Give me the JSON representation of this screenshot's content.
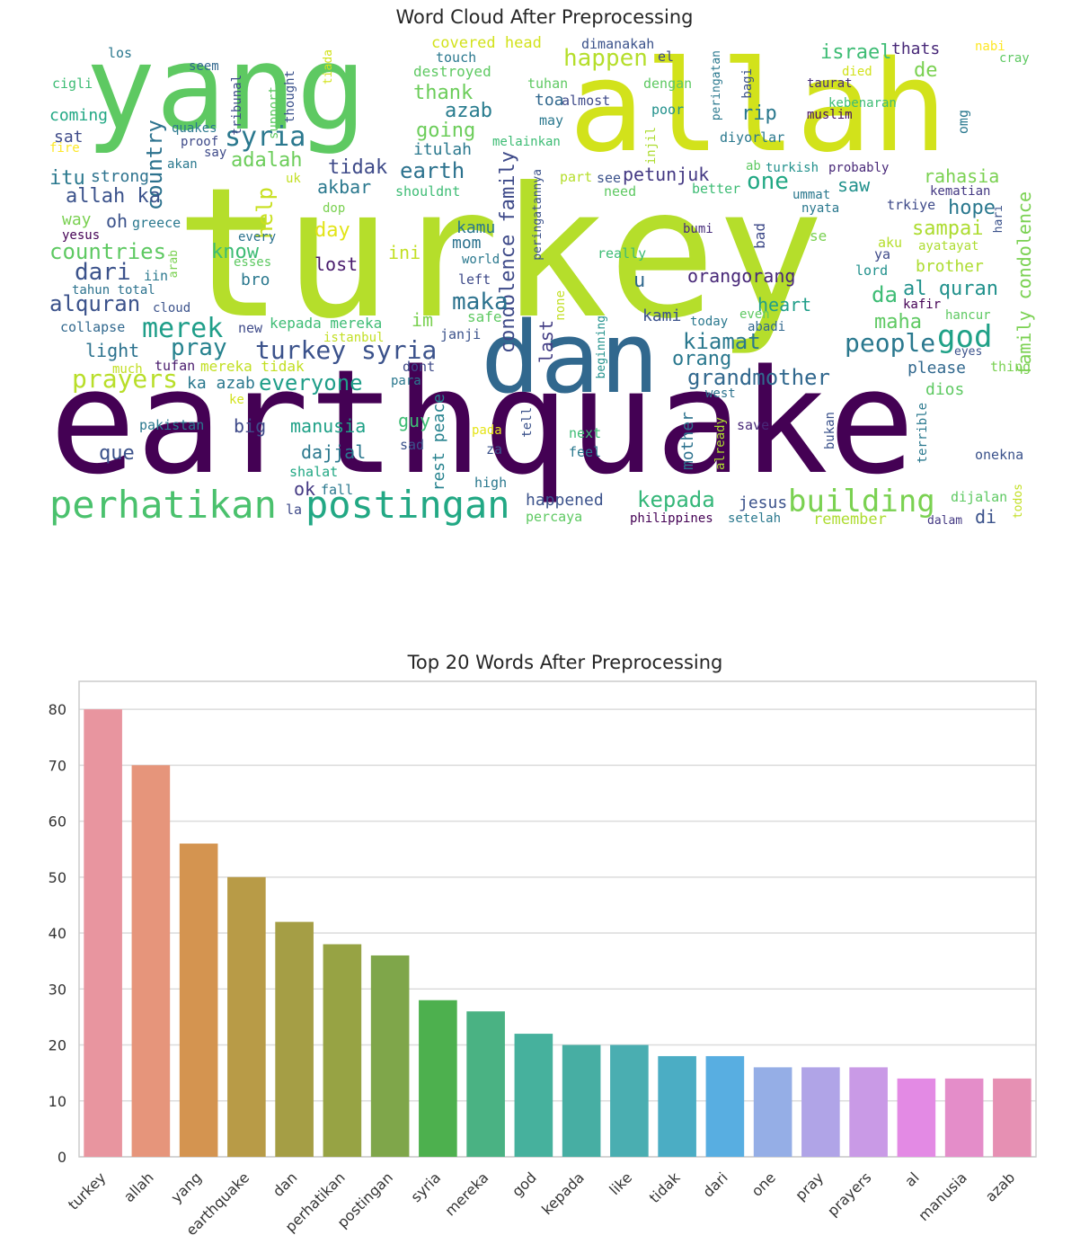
{
  "wordcloud": {
    "title": "Word Cloud After Preprocessing",
    "words": [
      {
        "text": "earthquake",
        "color": "#440154"
      },
      {
        "text": "turkey",
        "color": "#b5de2b"
      },
      {
        "text": "allah",
        "color": "#d2e21b"
      },
      {
        "text": "yang",
        "color": "#5ec962"
      },
      {
        "text": "dan",
        "color": "#31688e"
      },
      {
        "text": "perhatikan",
        "color": "#4ac16d"
      },
      {
        "text": "postingan",
        "color": "#22a884"
      },
      {
        "text": "syria",
        "color": "#2a788e"
      },
      {
        "text": "building",
        "color": "#7ad151"
      },
      {
        "text": "god",
        "color": "#1fa187"
      },
      {
        "text": "turkey syria",
        "color": "#3b528b"
      },
      {
        "text": "merek",
        "color": "#1f9e89"
      },
      {
        "text": "kepada",
        "color": "#35b779"
      },
      {
        "text": "people",
        "color": "#2a788e"
      },
      {
        "text": "kiamat",
        "color": "#2a788e"
      },
      {
        "text": "grandmother",
        "color": "#31688e"
      },
      {
        "text": "prayers",
        "color": "#b8de29"
      },
      {
        "text": "everyone",
        "color": "#1f9e89"
      },
      {
        "text": "condolence family",
        "color": "#3e4a89"
      },
      {
        "text": "family condolence",
        "color": "#7ad151"
      },
      {
        "text": "country",
        "color": "#2c728e"
      },
      {
        "text": "earth",
        "color": "#2c728e"
      },
      {
        "text": "happen",
        "color": "#b5de2b"
      },
      {
        "text": "israel",
        "color": "#3dbc74"
      },
      {
        "text": "countries",
        "color": "#5ec962"
      },
      {
        "text": "dari",
        "color": "#3b528b"
      },
      {
        "text": "alquran",
        "color": "#3b528b"
      },
      {
        "text": "maka",
        "color": "#2c728e"
      },
      {
        "text": "pray",
        "color": "#26828e"
      },
      {
        "text": "thank",
        "color": "#6ccd5a"
      },
      {
        "text": "going",
        "color": "#6ccd5a"
      },
      {
        "text": "adalah",
        "color": "#6ccd5a"
      },
      {
        "text": "allah ka",
        "color": "#3b528b"
      },
      {
        "text": "akbar",
        "color": "#2a788e"
      },
      {
        "text": "tidak",
        "color": "#3e4a89"
      },
      {
        "text": "azab",
        "color": "#287c8e"
      },
      {
        "text": "help",
        "color": "#c8e020"
      },
      {
        "text": "one",
        "color": "#22a884"
      },
      {
        "text": "al quran",
        "color": "#21918c"
      },
      {
        "text": "rahasia",
        "color": "#7ad151"
      },
      {
        "text": "hope",
        "color": "#2a788e"
      },
      {
        "text": "sampai",
        "color": "#addc30"
      },
      {
        "text": "da",
        "color": "#3dbc74"
      },
      {
        "text": "maha",
        "color": "#5ec962"
      },
      {
        "text": "day",
        "color": "#e2e418"
      },
      {
        "text": "know",
        "color": "#3dbc74"
      },
      {
        "text": "lost",
        "color": "#481a6c"
      },
      {
        "text": "ini",
        "color": "#c2df23"
      },
      {
        "text": "kamu",
        "color": "#2a788e"
      },
      {
        "text": "mom",
        "color": "#2c728e"
      },
      {
        "text": "rip",
        "color": "#2a788e"
      },
      {
        "text": "petunjuk",
        "color": "#443983"
      },
      {
        "text": "orangorang",
        "color": "#482878"
      },
      {
        "text": "heart",
        "color": "#1f9e89"
      },
      {
        "text": "u",
        "color": "#31688e"
      },
      {
        "text": "kami",
        "color": "#3b528b"
      },
      {
        "text": "orang",
        "color": "#2a788e"
      },
      {
        "text": "saw",
        "color": "#21918c"
      },
      {
        "text": "de",
        "color": "#7ad151"
      },
      {
        "text": "thats",
        "color": "#482878"
      },
      {
        "text": "im",
        "color": "#7ad151"
      },
      {
        "text": "bro",
        "color": "#2a788e"
      },
      {
        "text": "way",
        "color": "#7ad151"
      },
      {
        "text": "oh",
        "color": "#3b528b"
      },
      {
        "text": "itu",
        "color": "#2a788e"
      },
      {
        "text": "strong",
        "color": "#2c728e"
      },
      {
        "text": "coming",
        "color": "#22a884"
      },
      {
        "text": "sat",
        "color": "#3e4a89"
      },
      {
        "text": "light",
        "color": "#2c728e"
      },
      {
        "text": "big",
        "color": "#3e4a89"
      },
      {
        "text": "que",
        "color": "#3b528b"
      },
      {
        "text": "manusia",
        "color": "#1fa187"
      },
      {
        "text": "dajjal",
        "color": "#2a788e"
      },
      {
        "text": "ok",
        "color": "#443983"
      },
      {
        "text": "guy",
        "color": "#3dbc74"
      },
      {
        "text": "happened",
        "color": "#3b528b"
      },
      {
        "text": "jesus",
        "color": "#3b528b"
      },
      {
        "text": "di",
        "color": "#3b528b"
      },
      {
        "text": "mother",
        "color": "#2c728e"
      },
      {
        "text": "last",
        "color": "#433e85"
      },
      {
        "text": "rest peace",
        "color": "#26828e"
      },
      {
        "text": "brother",
        "color": "#addc30"
      },
      {
        "text": "please",
        "color": "#31688e"
      },
      {
        "text": "dios",
        "color": "#5ec962"
      },
      {
        "text": "kepada mereka",
        "color": "#3dbc74"
      },
      {
        "text": "mereka tidak",
        "color": "#c2df23"
      },
      {
        "text": "ka azab",
        "color": "#2a788e"
      },
      {
        "text": "covered head",
        "color": "#d2e21b"
      },
      {
        "text": "destroyed",
        "color": "#5ec962"
      },
      {
        "text": "touch",
        "color": "#2a788e"
      },
      {
        "text": "dimanakah",
        "color": "#3b528b"
      },
      {
        "text": "nabi",
        "color": "#fde725"
      },
      {
        "text": "cray",
        "color": "#5ec962"
      },
      {
        "text": "los",
        "color": "#2a788e"
      },
      {
        "text": "seem",
        "color": "#31688e"
      },
      {
        "text": "cigli",
        "color": "#3dbc74"
      },
      {
        "text": "taurat",
        "color": "#472d7b"
      },
      {
        "text": "muslim",
        "color": "#471063"
      },
      {
        "text": "kebenaran",
        "color": "#3dbc74"
      },
      {
        "text": "poor",
        "color": "#21918c"
      },
      {
        "text": "dengan",
        "color": "#5ec962"
      },
      {
        "text": "tuhan",
        "color": "#5ec962"
      },
      {
        "text": "toa",
        "color": "#31688e"
      },
      {
        "text": "almost",
        "color": "#3e4a89"
      },
      {
        "text": "may",
        "color": "#2a788e"
      },
      {
        "text": "melainkan",
        "color": "#3dbc74"
      },
      {
        "text": "itulah",
        "color": "#2a788e"
      },
      {
        "text": "diyorlar",
        "color": "#2a788e"
      },
      {
        "text": "turkish",
        "color": "#21918c"
      },
      {
        "text": "probably",
        "color": "#482878"
      },
      {
        "text": "kematian",
        "color": "#443983"
      },
      {
        "text": "ummat",
        "color": "#2a788e"
      },
      {
        "text": "nyata",
        "color": "#2a788e"
      },
      {
        "text": "trkiye",
        "color": "#3e4a89"
      },
      {
        "text": "better",
        "color": "#3dbc74"
      },
      {
        "text": "need",
        "color": "#5ec962"
      },
      {
        "text": "part",
        "color": "#b5de2b"
      },
      {
        "text": "see",
        "color": "#3b528b"
      },
      {
        "text": "shouldnt",
        "color": "#3dbc74"
      },
      {
        "text": "dop",
        "color": "#7ad151"
      },
      {
        "text": "bumi",
        "color": "#472d7b"
      },
      {
        "text": "bad",
        "color": "#3e4a89"
      },
      {
        "text": "se",
        "color": "#7ad151"
      },
      {
        "text": "aku",
        "color": "#b5de2b"
      },
      {
        "text": "ya",
        "color": "#3e4a89"
      },
      {
        "text": "ayatayat",
        "color": "#addc30"
      },
      {
        "text": "lord",
        "color": "#21918c"
      },
      {
        "text": "kafir",
        "color": "#440154"
      },
      {
        "text": "hancur",
        "color": "#5ec962"
      },
      {
        "text": "eyes",
        "color": "#3b528b"
      },
      {
        "text": "thing",
        "color": "#7ad151"
      },
      {
        "text": "greece",
        "color": "#2a788e"
      },
      {
        "text": "yesus",
        "color": "#440154"
      },
      {
        "text": "every",
        "color": "#2c728e"
      },
      {
        "text": "esses",
        "color": "#5ec962"
      },
      {
        "text": "iin",
        "color": "#2a788e"
      },
      {
        "text": "tahun total",
        "color": "#2c728e"
      },
      {
        "text": "cloud",
        "color": "#3b528b"
      },
      {
        "text": "collapse",
        "color": "#31688e"
      },
      {
        "text": "new",
        "color": "#3e4a89"
      },
      {
        "text": "istanbul",
        "color": "#c2df23"
      },
      {
        "text": "janji",
        "color": "#3b528b"
      },
      {
        "text": "much",
        "color": "#c2df23"
      },
      {
        "text": "tufan",
        "color": "#481a6c"
      },
      {
        "text": "dont",
        "color": "#3e4a89"
      },
      {
        "text": "para",
        "color": "#2a788e"
      },
      {
        "text": "ke",
        "color": "#d2e21b"
      },
      {
        "text": "pakistan",
        "color": "#2a788e"
      },
      {
        "text": "sad",
        "color": "#3b528b"
      },
      {
        "text": "za",
        "color": "#3b528b"
      },
      {
        "text": "pada",
        "color": "#e5e419"
      },
      {
        "text": "next",
        "color": "#3dbc74"
      },
      {
        "text": "feel",
        "color": "#2a788e"
      },
      {
        "text": "shalat",
        "color": "#22a884"
      },
      {
        "text": "fall",
        "color": "#2a788e"
      },
      {
        "text": "la",
        "color": "#3e4a89"
      },
      {
        "text": "high",
        "color": "#2a788e"
      },
      {
        "text": "percaya",
        "color": "#5ec962"
      },
      {
        "text": "philippines",
        "color": "#440154"
      },
      {
        "text": "setelah",
        "color": "#2a788e"
      },
      {
        "text": "remember",
        "color": "#addc30"
      },
      {
        "text": "dalam",
        "color": "#443983"
      },
      {
        "text": "dijalan",
        "color": "#5ec962"
      },
      {
        "text": "onekna",
        "color": "#3b528b"
      },
      {
        "text": "save",
        "color": "#482878"
      },
      {
        "text": "west",
        "color": "#2c728e"
      },
      {
        "text": "today",
        "color": "#2a788e"
      },
      {
        "text": "even",
        "color": "#5ec962"
      },
      {
        "text": "abadi",
        "color": "#31688e"
      },
      {
        "text": "really",
        "color": "#3dbc74"
      },
      {
        "text": "world",
        "color": "#2a788e"
      },
      {
        "text": "left",
        "color": "#3e4a89"
      },
      {
        "text": "safe",
        "color": "#5ec962"
      },
      {
        "text": "fire",
        "color": "#fde725"
      },
      {
        "text": "quakes",
        "color": "#2a788e"
      },
      {
        "text": "proof",
        "color": "#3e4a89"
      },
      {
        "text": "say",
        "color": "#3e4a89"
      },
      {
        "text": "akan",
        "color": "#2a788e"
      },
      {
        "text": "uk",
        "color": "#c2df23"
      },
      {
        "text": "died",
        "color": "#d2e21b"
      },
      {
        "text": "el",
        "color": "#3e4a89"
      },
      {
        "text": "ab",
        "color": "#5ec962"
      },
      {
        "text": "tribunal",
        "color": "#3e4a89"
      },
      {
        "text": "support",
        "color": "#5ec962"
      },
      {
        "text": "thought",
        "color": "#3b528b"
      },
      {
        "text": "tiada",
        "color": "#d2e21b"
      },
      {
        "text": "peringatan",
        "color": "#2a788e"
      },
      {
        "text": "bagi",
        "color": "#3b528b"
      },
      {
        "text": "omg",
        "color": "#2a788e"
      },
      {
        "text": "injil",
        "color": "#addc30"
      },
      {
        "text": "peringatannya",
        "color": "#3b528b"
      },
      {
        "text": "arab",
        "color": "#7ad151"
      },
      {
        "text": "none",
        "color": "#c2df23"
      },
      {
        "text": "beginning",
        "color": "#21918c"
      },
      {
        "text": "already",
        "color": "#addc30"
      },
      {
        "text": "tell",
        "color": "#3b528b"
      },
      {
        "text": "bukan",
        "color": "#3b528b"
      },
      {
        "text": "terrible",
        "color": "#2a788e"
      },
      {
        "text": "todos",
        "color": "#c2df23"
      },
      {
        "text": "hari",
        "color": "#3b528b"
      }
    ]
  },
  "chart_data": {
    "type": "bar",
    "title": "Top 20 Words After Preprocessing",
    "xlabel": "",
    "ylabel": "",
    "ylim": [
      0,
      85
    ],
    "yticks": [
      0,
      10,
      20,
      30,
      40,
      50,
      60,
      70,
      80
    ],
    "grid": true,
    "categories": [
      "turkey",
      "allah",
      "yang",
      "earthquake",
      "dan",
      "perhatikan",
      "postingan",
      "syria",
      "mereka",
      "god",
      "kepada",
      "like",
      "tidak",
      "dari",
      "one",
      "pray",
      "prayers",
      "al",
      "manusia",
      "azab"
    ],
    "values": [
      80,
      70,
      56,
      50,
      42,
      38,
      36,
      28,
      26,
      22,
      20,
      20,
      18,
      18,
      16,
      16,
      16,
      14,
      14,
      14
    ],
    "colors": [
      "#e8959f",
      "#e6957b",
      "#d49450",
      "#b89b47",
      "#a59e45",
      "#97a344",
      "#7fa64a",
      "#4db04e",
      "#4ab283",
      "#46b19d",
      "#47aea3",
      "#4aaeb1",
      "#4badc4",
      "#58aee1",
      "#95aee6",
      "#b0a4e7",
      "#c99ae6",
      "#e38ae4",
      "#e48dc9",
      "#e690b3"
    ]
  }
}
